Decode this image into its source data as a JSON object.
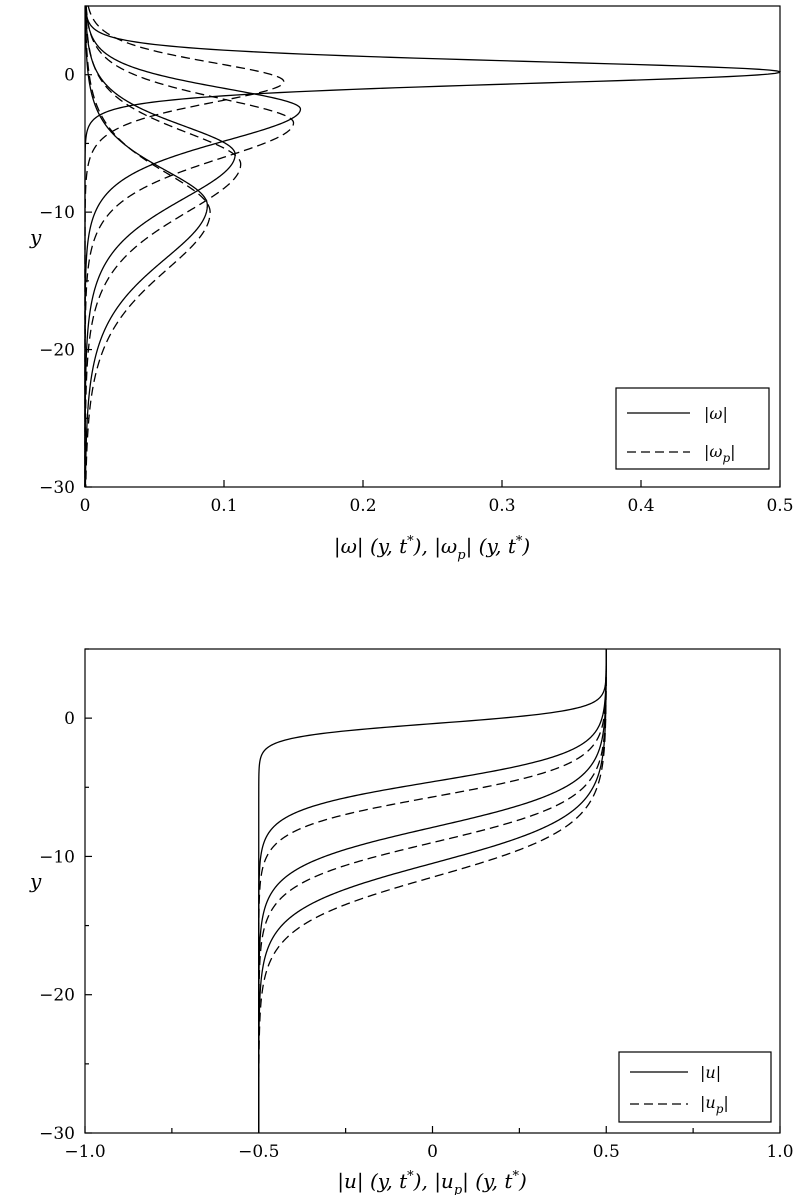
{
  "chart_data": [
    {
      "type": "line",
      "xlabel": "|ω| (y, t*),  |ω_p| (y, t*)",
      "ylabel": "y",
      "xlim": [
        0,
        0.5
      ],
      "ylim": [
        -30,
        5
      ],
      "xticks": [
        0,
        0.1,
        0.2,
        0.3,
        0.4,
        0.5
      ],
      "xtick_labels": [
        "0",
        "0.1",
        "0.2",
        "0.3",
        "0.4",
        "0.5"
      ],
      "yticks": [
        0,
        -10,
        -20,
        -30
      ],
      "ytick_labels": [
        "0",
        "−10",
        "−20",
        "−30"
      ],
      "legend": {
        "placement": "bottom-right",
        "entries": [
          {
            "label": "|ω|",
            "style": "solid"
          },
          {
            "label": "|ω_p|",
            "style": "dashed"
          }
        ]
      },
      "series": [
        {
          "group": "omega",
          "style": "solid",
          "peak_x": 0.5,
          "peak_y": 0.2,
          "width_up": 1.1,
          "width_down": 1.2
        },
        {
          "group": "omega",
          "style": "solid",
          "peak_x": 0.155,
          "peak_y": -2.5,
          "width_up": 2.2,
          "width_down": 3.4
        },
        {
          "group": "omega",
          "style": "solid",
          "peak_x": 0.108,
          "peak_y": -5.8,
          "width_up": 3.1,
          "width_down": 4.8
        },
        {
          "group": "omega",
          "style": "solid",
          "peak_x": 0.088,
          "peak_y": -9.5,
          "width_up": 3.8,
          "width_down": 5.8
        },
        {
          "group": "omega_p",
          "style": "dashed",
          "peak_x": 0.143,
          "peak_y": -0.5,
          "width_up": 2.0,
          "width_down": 2.2
        },
        {
          "group": "omega_p",
          "style": "dashed",
          "peak_x": 0.15,
          "peak_y": -3.5,
          "width_up": 2.6,
          "width_down": 3.8
        },
        {
          "group": "omega_p",
          "style": "dashed",
          "peak_x": 0.112,
          "peak_y": -6.5,
          "width_up": 3.4,
          "width_down": 5.2
        },
        {
          "group": "omega_p",
          "style": "dashed",
          "peak_x": 0.09,
          "peak_y": -10.0,
          "width_up": 4.2,
          "width_down": 6.2
        }
      ]
    },
    {
      "type": "line",
      "xlabel": "|u| (y, t*),  |u_p| (y, t*)",
      "ylabel": "y",
      "xlim": [
        -1.0,
        1.0
      ],
      "ylim": [
        -30,
        5
      ],
      "xticks": [
        -1.0,
        -0.5,
        0,
        0.5,
        1.0
      ],
      "xtick_labels": [
        "−1.0",
        "−0.5",
        "0",
        "0.5",
        "1.0"
      ],
      "yticks": [
        0,
        -10,
        -20,
        -30
      ],
      "ytick_labels": [
        "0",
        "−10",
        "−20",
        "−30"
      ],
      "legend": {
        "placement": "bottom-right",
        "entries": [
          {
            "label": "|u|",
            "style": "solid"
          },
          {
            "label": "|u_p|",
            "style": "dashed"
          }
        ]
      },
      "series": [
        {
          "group": "u",
          "style": "solid",
          "center_y": -0.4,
          "scale": 0.95
        },
        {
          "group": "u",
          "style": "solid",
          "center_y": -4.6,
          "scale": 2.1
        },
        {
          "group": "u",
          "style": "solid",
          "center_y": -7.9,
          "scale": 2.9
        },
        {
          "group": "u",
          "style": "solid",
          "center_y": -10.5,
          "scale": 3.4
        },
        {
          "group": "u_p",
          "style": "dashed",
          "center_y": -5.7,
          "scale": 2.3
        },
        {
          "group": "u_p",
          "style": "dashed",
          "center_y": -9.0,
          "scale": 3.0
        },
        {
          "group": "u_p",
          "style": "dashed",
          "center_y": -11.5,
          "scale": 3.6
        }
      ]
    }
  ]
}
